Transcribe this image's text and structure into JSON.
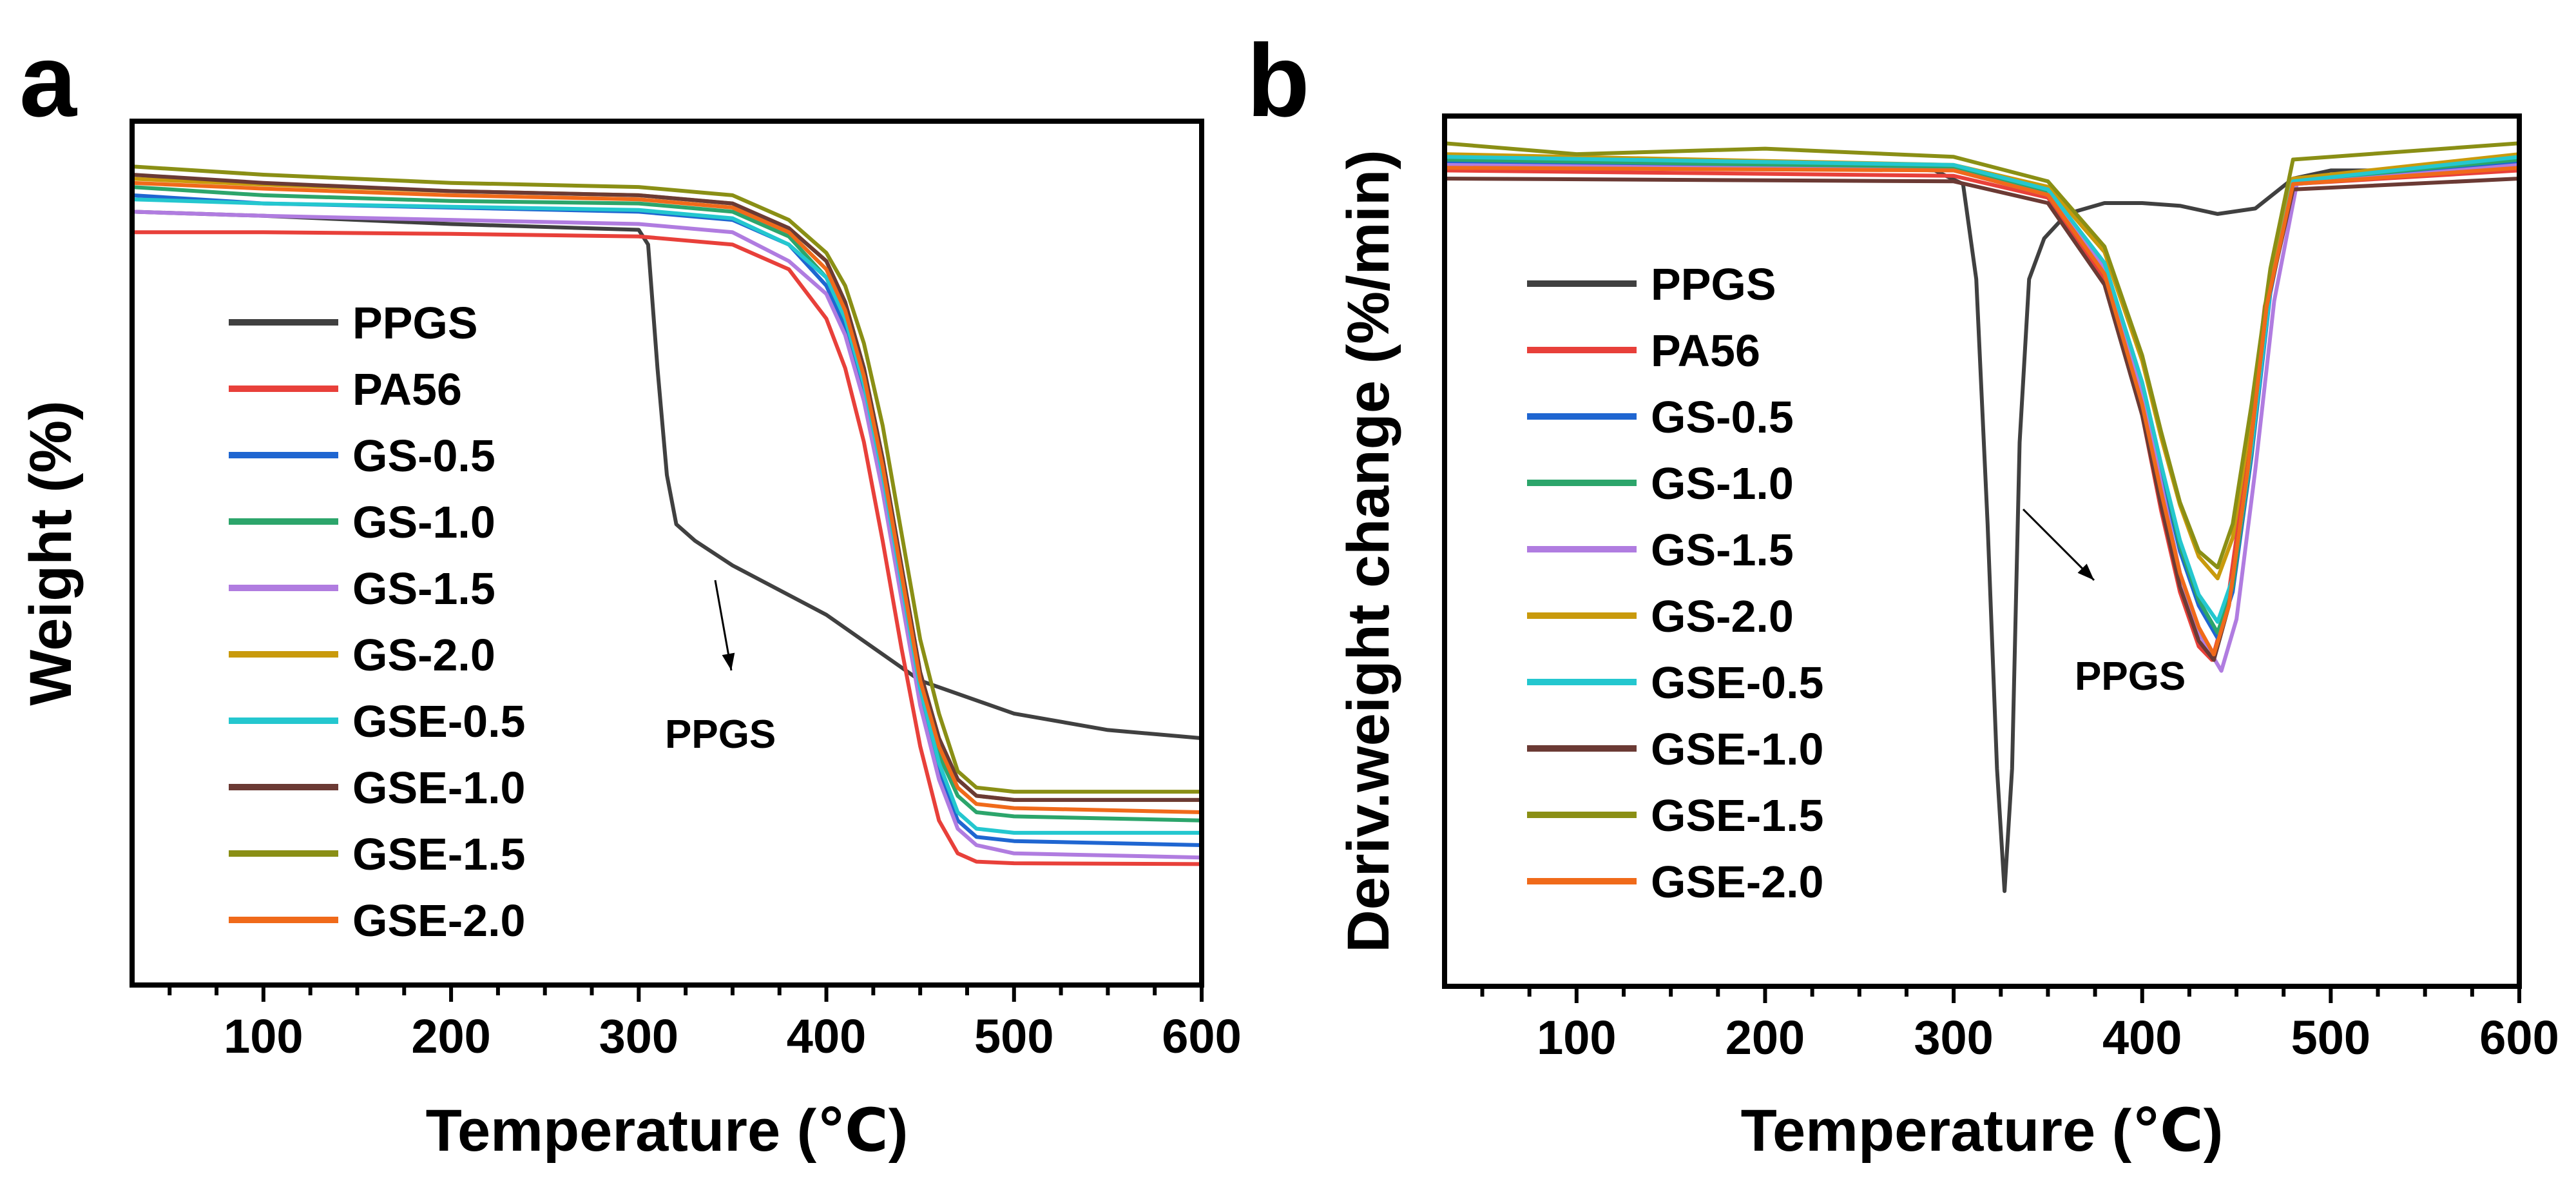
{
  "chart_data": [
    {
      "type": "line",
      "panel": "a",
      "title": "",
      "xlabel": "Temperature (℃)",
      "ylabel": "Weight (%)",
      "xlim": [
        30,
        600
      ],
      "ylim": [
        0,
        105
      ],
      "xticks": [
        100,
        200,
        300,
        400,
        500,
        600
      ],
      "yticks": [],
      "legend_position": "left",
      "annotation": {
        "text": "PPGS",
        "point_x": 350,
        "point_y": 58
      },
      "series": [
        {
          "name": "PPGS",
          "color": "#404040",
          "x": [
            30,
            100,
            200,
            300,
            305,
            310,
            315,
            320,
            330,
            350,
            400,
            450,
            500,
            550,
            600
          ],
          "y": [
            94,
            93.5,
            92.5,
            91.8,
            90,
            75,
            62,
            56,
            54,
            51,
            45,
            37,
            33,
            31,
            30
          ]
        },
        {
          "name": "PA56",
          "color": "#e8403a",
          "x": [
            30,
            100,
            200,
            300,
            350,
            380,
            400,
            410,
            420,
            430,
            440,
            450,
            460,
            470,
            480,
            500,
            600
          ],
          "y": [
            91.5,
            91.5,
            91.3,
            91,
            90,
            87,
            81,
            75,
            66,
            54,
            41,
            29,
            20,
            16,
            15,
            14.8,
            14.7
          ]
        },
        {
          "name": "GS-0.5",
          "color": "#1f66d1",
          "x": [
            30,
            100,
            200,
            300,
            350,
            380,
            400,
            410,
            420,
            430,
            440,
            450,
            460,
            470,
            480,
            500,
            600
          ],
          "y": [
            96,
            95,
            94.5,
            94,
            93,
            90,
            85,
            80,
            72,
            61,
            48,
            35,
            26,
            20,
            18,
            17.5,
            17
          ]
        },
        {
          "name": "GS-1.0",
          "color": "#2ca56b",
          "x": [
            30,
            100,
            200,
            300,
            350,
            380,
            400,
            410,
            420,
            430,
            440,
            450,
            460,
            470,
            480,
            500,
            600
          ],
          "y": [
            97,
            96,
            95.3,
            95,
            94,
            91,
            86,
            81,
            73,
            62,
            49,
            36,
            28,
            23,
            21,
            20.5,
            20
          ]
        },
        {
          "name": "GS-1.5",
          "color": "#b07ce0",
          "x": [
            30,
            100,
            200,
            300,
            350,
            380,
            400,
            410,
            420,
            430,
            440,
            450,
            460,
            470,
            480,
            500,
            600
          ],
          "y": [
            94,
            93.5,
            93,
            92.5,
            91.5,
            88,
            84,
            79,
            71,
            60,
            47,
            34,
            25,
            19,
            17,
            16,
            15.5
          ]
        },
        {
          "name": "GS-2.0",
          "color": "#c99a0c",
          "x": [
            30,
            100,
            200,
            300,
            350,
            380,
            400,
            410,
            420,
            430,
            440,
            450,
            460,
            470,
            480,
            500,
            600
          ],
          "y": [
            98,
            97.3,
            96.5,
            96,
            95,
            92,
            88,
            83,
            75,
            64,
            51,
            38,
            30,
            25,
            23,
            22.5,
            22.5
          ]
        },
        {
          "name": "GSE-0.5",
          "color": "#24c7cf",
          "x": [
            30,
            100,
            200,
            300,
            350,
            380,
            400,
            410,
            420,
            430,
            440,
            450,
            460,
            470,
            480,
            500,
            600
          ],
          "y": [
            95.5,
            95,
            94.6,
            94.2,
            93.2,
            90,
            86,
            81,
            73,
            62,
            49,
            36,
            27,
            21,
            19,
            18.5,
            18.5
          ]
        },
        {
          "name": "GSE-1.0",
          "color": "#6b3a34",
          "x": [
            30,
            100,
            200,
            300,
            350,
            380,
            400,
            410,
            420,
            430,
            440,
            450,
            460,
            470,
            480,
            500,
            600
          ],
          "y": [
            98.5,
            97.5,
            96.5,
            96,
            95,
            92,
            88,
            83,
            75,
            64,
            51,
            38,
            30,
            25,
            23,
            22.5,
            22.5
          ]
        },
        {
          "name": "GSE-1.5",
          "color": "#8a8f15",
          "x": [
            30,
            100,
            200,
            300,
            350,
            380,
            400,
            410,
            420,
            430,
            440,
            450,
            460,
            470,
            480,
            500,
            600
          ],
          "y": [
            99.5,
            98.5,
            97.5,
            97,
            96,
            93,
            89,
            85,
            78,
            68,
            55,
            42,
            33,
            26,
            24,
            23.5,
            23.5
          ]
        },
        {
          "name": "GSE-2.0",
          "color": "#f06a1a",
          "x": [
            30,
            100,
            200,
            300,
            350,
            380,
            400,
            410,
            420,
            430,
            440,
            450,
            460,
            470,
            480,
            500,
            600
          ],
          "y": [
            97.5,
            96.8,
            96,
            95.5,
            94.5,
            91.5,
            87,
            82,
            74,
            63,
            50,
            37,
            29,
            24,
            22,
            21.5,
            21
          ]
        }
      ]
    },
    {
      "type": "line",
      "panel": "b",
      "title": "",
      "xlabel": "Temperature (℃)",
      "ylabel": "Deriv.weight change (%/min)",
      "xlim": [
        30,
        600
      ],
      "ylim": [
        -30,
        2
      ],
      "xticks": [
        100,
        200,
        300,
        400,
        500,
        600
      ],
      "yticks": [],
      "legend_position": "left",
      "annotation": {
        "text": "PPGS",
        "point_x": 375,
        "point_y": -14
      },
      "series": [
        {
          "name": "PPGS",
          "color": "#404040",
          "x": [
            30,
            100,
            200,
            290,
            305,
            312,
            318,
            323,
            327,
            331,
            335,
            340,
            348,
            360,
            380,
            400,
            420,
            440,
            460,
            480,
            500,
            600
          ],
          "y": [
            0,
            0.2,
            0.2,
            0,
            -0.5,
            -4,
            -13,
            -22,
            -26.5,
            -22,
            -10,
            -4,
            -2.5,
            -1.6,
            -1.2,
            -1.2,
            -1.3,
            -1.6,
            -1.4,
            -0.3,
            0,
            0
          ]
        },
        {
          "name": "PA56",
          "color": "#e8403a",
          "x": [
            30,
            300,
            350,
            380,
            400,
            410,
            420,
            430,
            437,
            445,
            455,
            465,
            480,
            600
          ],
          "y": [
            0,
            -0.2,
            -1,
            -4,
            -9,
            -12.5,
            -15.5,
            -17.5,
            -18,
            -16,
            -11,
            -5,
            -0.5,
            0
          ]
        },
        {
          "name": "GS-0.5",
          "color": "#1f66d1",
          "x": [
            30,
            300,
            350,
            380,
            400,
            410,
            420,
            430,
            440,
            448,
            458,
            468,
            480,
            600
          ],
          "y": [
            0.3,
            0.1,
            -0.8,
            -3.5,
            -8,
            -11,
            -14,
            -16,
            -17.2,
            -15.5,
            -10.5,
            -4.5,
            -0.4,
            0.3
          ]
        },
        {
          "name": "GS-1.0",
          "color": "#2ca56b",
          "x": [
            30,
            300,
            350,
            380,
            400,
            410,
            420,
            430,
            440,
            448,
            458,
            468,
            480,
            600
          ],
          "y": [
            0.4,
            0.1,
            -0.8,
            -3.4,
            -7.8,
            -10.8,
            -13.8,
            -15.8,
            -17,
            -15.3,
            -10.3,
            -4.3,
            -0.4,
            0.4
          ]
        },
        {
          "name": "GS-1.5",
          "color": "#b07ce0",
          "x": [
            30,
            300,
            350,
            380,
            400,
            410,
            420,
            430,
            442,
            450,
            460,
            470,
            482,
            600
          ],
          "y": [
            0.2,
            0,
            -0.9,
            -3.6,
            -8.2,
            -11.5,
            -14.8,
            -17,
            -18.4,
            -16.5,
            -11,
            -4.8,
            -0.5,
            0.2
          ]
        },
        {
          "name": "GS-2.0",
          "color": "#c99a0c",
          "x": [
            30,
            300,
            350,
            380,
            400,
            410,
            420,
            430,
            440,
            448,
            458,
            468,
            480,
            600
          ],
          "y": [
            0.6,
            0.2,
            -0.6,
            -3,
            -7,
            -9.8,
            -12.3,
            -14.2,
            -15,
            -13.5,
            -9,
            -4,
            -0.3,
            0.6
          ]
        },
        {
          "name": "GSE-0.5",
          "color": "#24c7cf",
          "x": [
            30,
            300,
            350,
            380,
            400,
            410,
            420,
            430,
            440,
            448,
            458,
            468,
            480,
            600
          ],
          "y": [
            0.5,
            0.2,
            -0.7,
            -3.4,
            -7.8,
            -10.8,
            -13.6,
            -15.6,
            -16.6,
            -15,
            -10.2,
            -4.4,
            -0.4,
            0.5
          ]
        },
        {
          "name": "GSE-1.0",
          "color": "#6b3a34",
          "x": [
            30,
            300,
            350,
            380,
            400,
            410,
            420,
            430,
            438,
            446,
            456,
            466,
            480,
            600
          ],
          "y": [
            -0.3,
            -0.4,
            -1.2,
            -4.2,
            -9,
            -12.3,
            -15.3,
            -17.3,
            -18,
            -16,
            -11,
            -5,
            -0.7,
            -0.3
          ]
        },
        {
          "name": "GSE-1.5",
          "color": "#8a8f15",
          "x": [
            30,
            100,
            200,
            300,
            350,
            380,
            400,
            410,
            420,
            430,
            440,
            448,
            458,
            468,
            480,
            600
          ],
          "y": [
            1,
            0.6,
            0.8,
            0.5,
            -0.4,
            -2.8,
            -6.8,
            -9.6,
            -12.2,
            -14,
            -14.6,
            -13,
            -8.6,
            -3.6,
            0.4,
            1
          ]
        },
        {
          "name": "GSE-2.0",
          "color": "#f06a1a",
          "x": [
            30,
            300,
            350,
            380,
            400,
            410,
            420,
            430,
            438,
            446,
            456,
            466,
            480,
            600
          ],
          "y": [
            0.1,
            0,
            -0.9,
            -3.8,
            -8.6,
            -11.8,
            -14.8,
            -16.8,
            -17.8,
            -16,
            -11,
            -5,
            -0.5,
            0.1
          ]
        }
      ]
    }
  ],
  "panels": [
    {
      "letter": "a"
    },
    {
      "letter": "b"
    }
  ]
}
